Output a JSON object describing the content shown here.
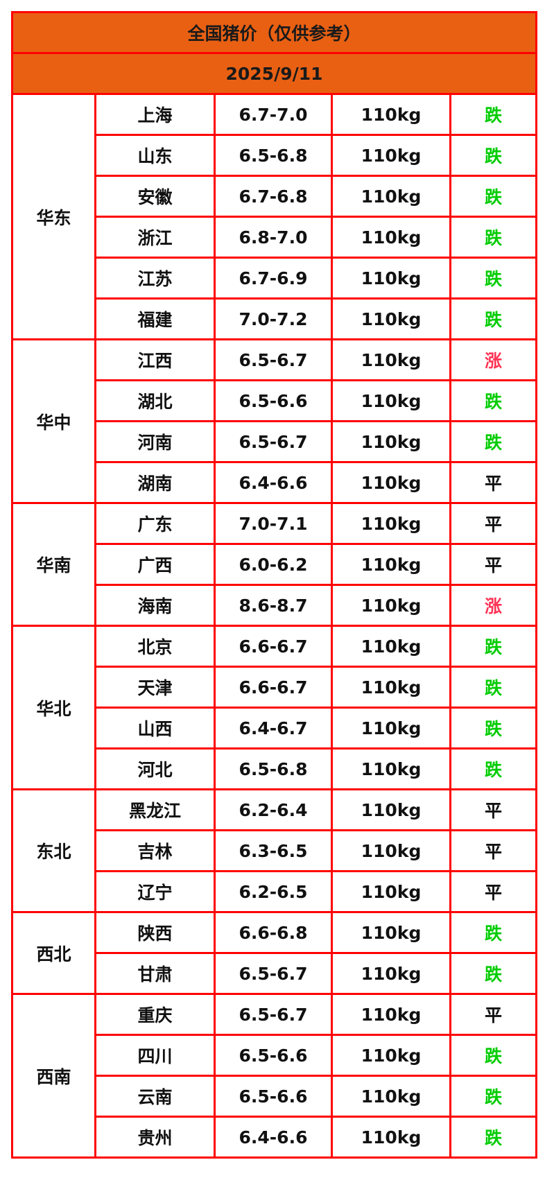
{
  "title": "全国猪价（仅供参考）",
  "date": "2025/9/11",
  "colors": {
    "header_bg": "#e96013",
    "border": "#ff0000",
    "down": "#00cc00",
    "up": "#ff3355",
    "flat": "#111111"
  },
  "regions": [
    {
      "name": "华东",
      "rows": [
        {
          "province": "上海",
          "price": "6.7-7.0",
          "weight": "110kg",
          "trend": "跌"
        },
        {
          "province": "山东",
          "price": "6.5-6.8",
          "weight": "110kg",
          "trend": "跌"
        },
        {
          "province": "安徽",
          "price": "6.7-6.8",
          "weight": "110kg",
          "trend": "跌"
        },
        {
          "province": "浙江",
          "price": "6.8-7.0",
          "weight": "110kg",
          "trend": "跌"
        },
        {
          "province": "江苏",
          "price": "6.7-6.9",
          "weight": "110kg",
          "trend": "跌"
        },
        {
          "province": "福建",
          "price": "7.0-7.2",
          "weight": "110kg",
          "trend": "跌"
        }
      ]
    },
    {
      "name": "华中",
      "rows": [
        {
          "province": "江西",
          "price": "6.5-6.7",
          "weight": "110kg",
          "trend": "涨"
        },
        {
          "province": "湖北",
          "price": "6.5-6.6",
          "weight": "110kg",
          "trend": "跌"
        },
        {
          "province": "河南",
          "price": "6.5-6.7",
          "weight": "110kg",
          "trend": "跌"
        },
        {
          "province": "湖南",
          "price": "6.4-6.6",
          "weight": "110kg",
          "trend": "平"
        }
      ]
    },
    {
      "name": "华南",
      "rows": [
        {
          "province": "广东",
          "price": "7.0-7.1",
          "weight": "110kg",
          "trend": "平"
        },
        {
          "province": "广西",
          "price": "6.0-6.2",
          "weight": "110kg",
          "trend": "平"
        },
        {
          "province": "海南",
          "price": "8.6-8.7",
          "weight": "110kg",
          "trend": "涨"
        }
      ]
    },
    {
      "name": "华北",
      "rows": [
        {
          "province": "北京",
          "price": "6.6-6.7",
          "weight": "110kg",
          "trend": "跌"
        },
        {
          "province": "天津",
          "price": "6.6-6.7",
          "weight": "110kg",
          "trend": "跌"
        },
        {
          "province": "山西",
          "price": "6.4-6.7",
          "weight": "110kg",
          "trend": "跌"
        },
        {
          "province": "河北",
          "price": "6.5-6.8",
          "weight": "110kg",
          "trend": "跌"
        }
      ]
    },
    {
      "name": "东北",
      "rows": [
        {
          "province": "黑龙江",
          "price": "6.2-6.4",
          "weight": "110kg",
          "trend": "平"
        },
        {
          "province": "吉林",
          "price": "6.3-6.5",
          "weight": "110kg",
          "trend": "平"
        },
        {
          "province": "辽宁",
          "price": "6.2-6.5",
          "weight": "110kg",
          "trend": "平"
        }
      ]
    },
    {
      "name": "西北",
      "rows": [
        {
          "province": "陕西",
          "price": "6.6-6.8",
          "weight": "110kg",
          "trend": "跌"
        },
        {
          "province": "甘肃",
          "price": "6.5-6.7",
          "weight": "110kg",
          "trend": "跌"
        }
      ]
    },
    {
      "name": "西南",
      "rows": [
        {
          "province": "重庆",
          "price": "6.5-6.7",
          "weight": "110kg",
          "trend": "平"
        },
        {
          "province": "四川",
          "price": "6.5-6.6",
          "weight": "110kg",
          "trend": "跌"
        },
        {
          "province": "云南",
          "price": "6.5-6.6",
          "weight": "110kg",
          "trend": "跌"
        },
        {
          "province": "贵州",
          "price": "6.4-6.6",
          "weight": "110kg",
          "trend": "跌"
        }
      ]
    }
  ]
}
